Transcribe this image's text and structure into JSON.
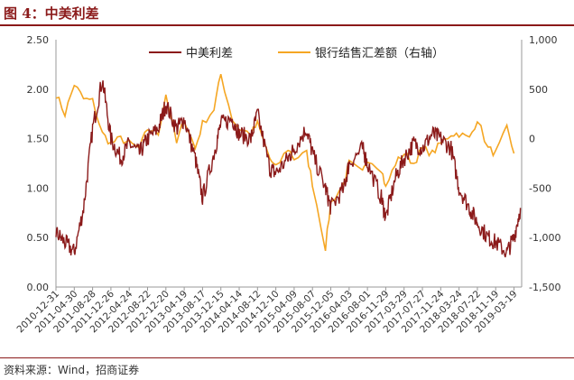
{
  "figure": {
    "title": "图 4：中美利差",
    "source": "资料来源：Wind，招商证券"
  },
  "colors": {
    "spread": "#8B1A1A",
    "fx": "#F5A623",
    "title": "#8B1A1A"
  },
  "chart_data": {
    "type": "line",
    "title": "",
    "left_axis": {
      "range": [
        0.0,
        2.5
      ],
      "ticks": [
        "0.00",
        "0.50",
        "1.00",
        "1.50",
        "2.00",
        "2.50"
      ]
    },
    "right_axis": {
      "range": [
        -1500,
        1000
      ],
      "ticks": [
        "-1,500",
        "-1,000",
        "-500",
        "0",
        "500",
        "1,000"
      ]
    },
    "x_tick_labels": [
      "2010-12-31",
      "2011-04-30",
      "2011-08-28",
      "2011-12-26",
      "2012-04-24",
      "2012-08-22",
      "2012-12-20",
      "2013-04-19",
      "2013-08-17",
      "2013-12-15",
      "2014-04-14",
      "2014-08-12",
      "2014-12-10",
      "2015-04-09",
      "2015-08-07",
      "2015-12-05",
      "2016-04-03",
      "2016-08-01",
      "2016-11-29",
      "2017-03-29",
      "2017-07-27",
      "2017-11-24",
      "2018-03-24",
      "2018-07-22",
      "2018-11-19",
      "2019-03-19"
    ],
    "legend_position": "top",
    "series": [
      {
        "name": "中美利差",
        "axis": "left",
        "x": [
          "2010-12-31",
          "2011-02-28",
          "2011-04-30",
          "2011-06-30",
          "2011-08-28",
          "2011-10-31",
          "2011-12-26",
          "2012-02-28",
          "2012-04-24",
          "2012-06-30",
          "2012-08-22",
          "2012-10-31",
          "2012-12-20",
          "2013-02-28",
          "2013-04-19",
          "2013-06-30",
          "2013-08-17",
          "2013-10-31",
          "2013-12-15",
          "2014-02-28",
          "2014-04-14",
          "2014-06-30",
          "2014-08-12",
          "2014-10-31",
          "2014-12-10",
          "2015-02-28",
          "2015-04-09",
          "2015-06-30",
          "2015-08-07",
          "2015-10-31",
          "2015-12-05",
          "2016-02-29",
          "2016-04-03",
          "2016-06-30",
          "2016-08-01",
          "2016-10-31",
          "2016-11-29",
          "2017-01-31",
          "2017-03-29",
          "2017-05-31",
          "2017-07-27",
          "2017-09-30",
          "2017-11-24",
          "2018-01-31",
          "2018-03-24",
          "2018-05-31",
          "2018-07-22",
          "2018-09-30",
          "2018-11-19",
          "2019-01-31",
          "2019-03-19",
          "2019-04-30"
        ],
        "values": [
          0.55,
          0.45,
          0.35,
          0.8,
          1.6,
          2.1,
          1.5,
          1.3,
          1.45,
          1.35,
          1.5,
          1.6,
          1.85,
          1.6,
          1.7,
          1.3,
          0.9,
          1.35,
          1.65,
          1.7,
          1.55,
          1.5,
          1.75,
          1.2,
          1.15,
          1.3,
          1.4,
          1.6,
          1.35,
          1.0,
          0.8,
          1.0,
          1.25,
          1.4,
          1.25,
          0.9,
          0.7,
          1.1,
          1.3,
          1.45,
          1.4,
          1.55,
          1.5,
          1.4,
          1.0,
          0.8,
          0.65,
          0.5,
          0.45,
          0.35,
          0.5,
          0.8
        ]
      },
      {
        "name": "银行结售汇差额（右轴）",
        "axis": "right",
        "x": [
          "2010-12-31",
          "2011-02-28",
          "2011-04-30",
          "2011-06-30",
          "2011-08-28",
          "2011-10-31",
          "2011-12-26",
          "2012-02-28",
          "2012-04-24",
          "2012-06-30",
          "2012-08-22",
          "2012-10-31",
          "2012-12-20",
          "2013-02-28",
          "2013-04-19",
          "2013-06-30",
          "2013-08-17",
          "2013-10-31",
          "2013-12-15",
          "2014-02-28",
          "2014-04-14",
          "2014-06-30",
          "2014-08-12",
          "2014-10-31",
          "2014-12-10",
          "2015-02-28",
          "2015-04-09",
          "2015-06-30",
          "2015-08-07",
          "2015-10-31",
          "2015-12-05",
          "2016-02-29",
          "2016-04-03",
          "2016-06-30",
          "2016-08-01",
          "2016-10-31",
          "2016-11-29",
          "2017-01-31",
          "2017-03-29",
          "2017-05-31",
          "2017-07-27",
          "2017-09-30",
          "2017-11-24",
          "2018-01-31",
          "2018-03-24",
          "2018-05-31",
          "2018-07-22",
          "2018-09-30",
          "2018-11-19",
          "2019-01-31",
          "2019-03-19"
        ],
        "values": [
          450,
          250,
          550,
          400,
          380,
          50,
          -50,
          0,
          -50,
          -100,
          100,
          50,
          450,
          -50,
          200,
          -100,
          150,
          300,
          650,
          200,
          100,
          50,
          150,
          -200,
          -300,
          -100,
          -200,
          -150,
          -450,
          -1100,
          -650,
          -450,
          -250,
          -350,
          -200,
          -300,
          -500,
          -250,
          -150,
          -250,
          -100,
          -150,
          -50,
          50,
          50,
          0,
          200,
          -100,
          -150,
          100,
          -150
        ]
      }
    ]
  }
}
